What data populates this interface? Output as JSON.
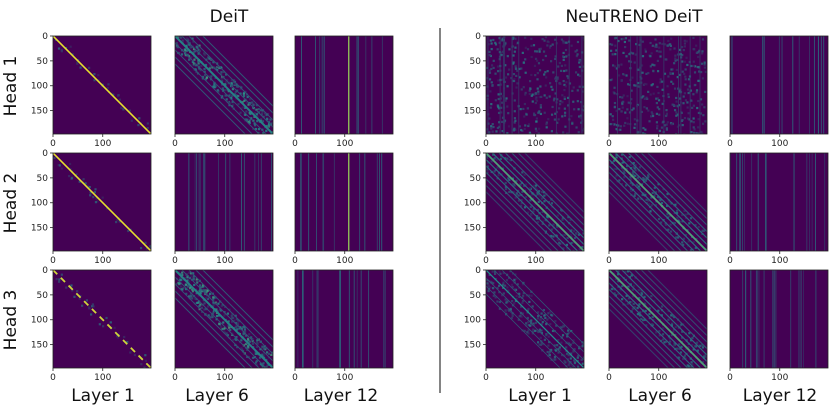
{
  "chart_data": {
    "type": "heatmap",
    "description_of_panels": "attention maps per head and layer",
    "groups": [
      {
        "title": "DeiT"
      },
      {
        "title": "NeuTRENO DeiT"
      }
    ],
    "row_labels": [
      "Head 1",
      "Head 2",
      "Head 3"
    ],
    "column_labels": [
      "Layer 1",
      "Layer 6",
      "Layer 12",
      "Layer 1",
      "Layer 6",
      "Layer 12"
    ],
    "y_ticks": [
      "0",
      "50",
      "100",
      "150"
    ],
    "x_ticks": [
      "0",
      "100"
    ],
    "y_tick_values": [
      0,
      50,
      100,
      150
    ],
    "x_tick_values": [
      0,
      100
    ],
    "matrix_size": 197,
    "colormap": {
      "low": "#440154",
      "mid": "#21918c",
      "high": "#fde725"
    },
    "panels": {
      "DeiT": [
        [
          "diagonal-sharp",
          "diagonal-diffuse",
          "vertical-stripes"
        ],
        [
          "diagonal-sharp",
          "vertical-faint",
          "vertical-stripes"
        ],
        [
          "diagonal-dashed",
          "diagonal-diffuse",
          "vertical-faint"
        ]
      ],
      "NeuTRENO DeiT": [
        [
          "diffuse",
          "diffuse",
          "vertical-faint"
        ],
        [
          "multi-diagonal",
          "multi-diagonal",
          "vertical-faint"
        ],
        [
          "diffuse-diagonal",
          "multi-diagonal",
          "vertical-faint"
        ]
      ]
    }
  }
}
